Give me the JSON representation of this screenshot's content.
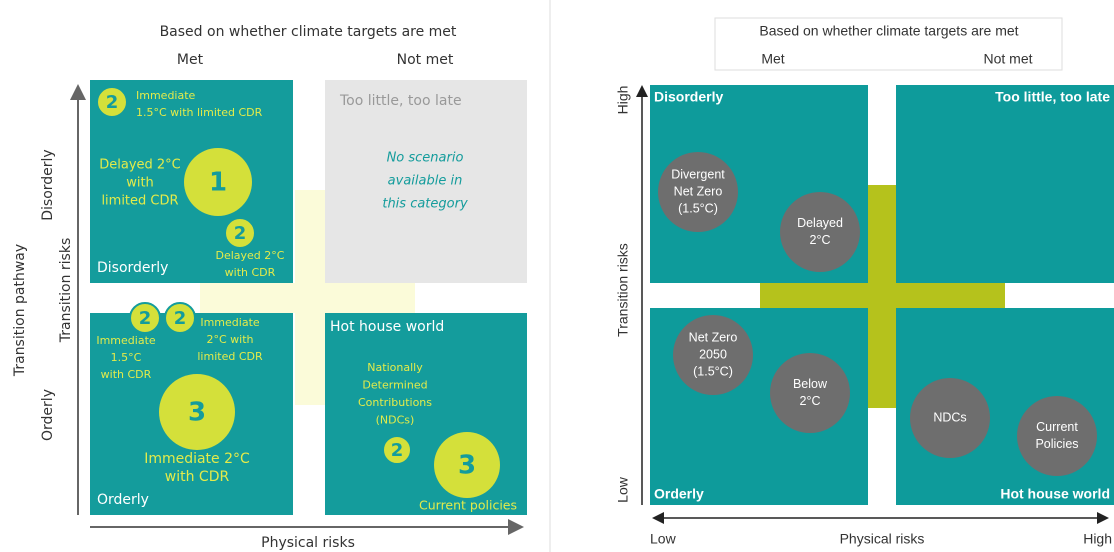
{
  "left_panel": {
    "title": "Based on whether climate targets are met",
    "columns": [
      "Met",
      "Not met"
    ],
    "y_axis_title": "Transition pathway",
    "y_axis_subtitle": "Transition risks",
    "rows": [
      "Disorderly",
      "Orderly"
    ],
    "x_axis_title": "Physical risks",
    "quadrants": [
      {
        "label": "Disorderly",
        "scenarios": [
          {
            "marker": "2",
            "text": [
              "Immediate",
              "1.5°C with limited CDR"
            ]
          },
          {
            "marker": "1",
            "text": [
              "Delayed 2°C",
              "with",
              "limited CDR"
            ]
          },
          {
            "marker": "2",
            "text": [
              "Delayed 2°C",
              "with CDR"
            ]
          }
        ]
      },
      {
        "label": "Too little, too late",
        "note": [
          "No scenario",
          "available in",
          "this category"
        ]
      },
      {
        "label": "Orderly",
        "scenarios": [
          {
            "marker": "2",
            "text": [
              "Immediate",
              "1.5°C",
              "with CDR"
            ]
          },
          {
            "marker": "2",
            "text": [
              "Immediate",
              "2°C with",
              "limited CDR"
            ]
          },
          {
            "marker": "3",
            "text": [
              "Immediate 2°C",
              "with CDR"
            ]
          }
        ]
      },
      {
        "label": "Hot house world",
        "scenarios": [
          {
            "marker": "2",
            "text": [
              "Nationally",
              "Determined",
              "Contributions",
              "(NDCs)"
            ]
          },
          {
            "marker": "3",
            "text": [
              "Current policies"
            ]
          }
        ]
      }
    ]
  },
  "right_panel": {
    "title": "Based on whether climate targets are met",
    "columns": [
      "Met",
      "Not met"
    ],
    "y_axis": {
      "title": "Transition risks",
      "high": "High",
      "low": "Low"
    },
    "x_axis": {
      "title": "Physical risks",
      "low": "Low",
      "high": "High"
    },
    "quadrants": [
      "Disorderly",
      "Too little, too late",
      "Orderly",
      "Hot house world"
    ],
    "scenarios": [
      [
        "Divergent",
        "Net Zero",
        "(1.5°C)"
      ],
      [
        "Delayed",
        "2°C"
      ],
      [
        "Net Zero",
        "2050",
        "(1.5°C)"
      ],
      [
        "Below",
        "2°C"
      ],
      [
        "NDCs"
      ],
      [
        "Current",
        "Policies"
      ]
    ]
  }
}
